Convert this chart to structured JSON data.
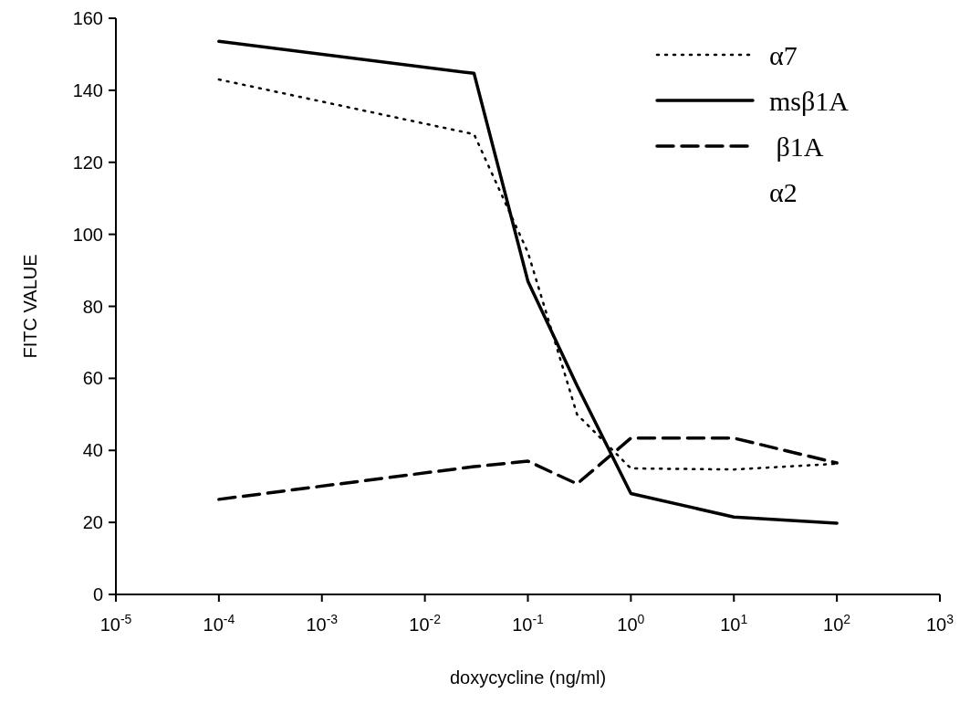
{
  "chart_data": {
    "type": "line",
    "xlabel": "doxycycline (ng/ml)",
    "ylabel": "FITC VALUE",
    "log": "x",
    "xlim": [
      1e-05,
      1000
    ],
    "xticks": [
      {
        "value": 1e-05,
        "label": "10$^{-5}$"
      },
      {
        "value": 0.0001,
        "label": "10$^{-4}$"
      },
      {
        "value": 0.001,
        "label": "10$^{-3}$"
      },
      {
        "value": 0.01,
        "label": "10$^{-2}$"
      },
      {
        "value": 0.1,
        "label": "10$^{-1}$"
      },
      {
        "value": 1,
        "label": "10$^{0}$"
      },
      {
        "value": 10,
        "label": "10$^{1}$"
      },
      {
        "value": 100,
        "label": "10$^{2}$"
      },
      {
        "value": 1000,
        "label": "10$^{3}$"
      }
    ],
    "ylim": [
      0,
      160
    ],
    "yticks": [
      0,
      20,
      40,
      60,
      80,
      100,
      120,
      140,
      160
    ],
    "x": [
      0.0001,
      0.03,
      0.1,
      0.3,
      1,
      10,
      100
    ],
    "grid": false,
    "legend": "top right",
    "marker": "none",
    "series": [
      {
        "name": "α7",
        "color": "#000000",
        "line_style": "dotted",
        "values": [
          143,
          127.8,
          95,
          50,
          35,
          34.7,
          36.3
        ]
      },
      {
        "name": "msβ1A",
        "color": "#000000",
        "line_style": "solid",
        "values": [
          153.6,
          144.7,
          87,
          58,
          28,
          21.5,
          19.8
        ]
      },
      {
        "name": " β1A",
        "color": "#000000",
        "line_style": "dashed",
        "values": [
          26.4,
          35.5,
          37,
          30.7,
          43.4,
          43.4,
          36.5
        ]
      },
      {
        "name": "α2",
        "line_style": "solid",
        "values": [
          null,
          null,
          null,
          null,
          null,
          null,
          null
        ]
      }
    ]
  }
}
